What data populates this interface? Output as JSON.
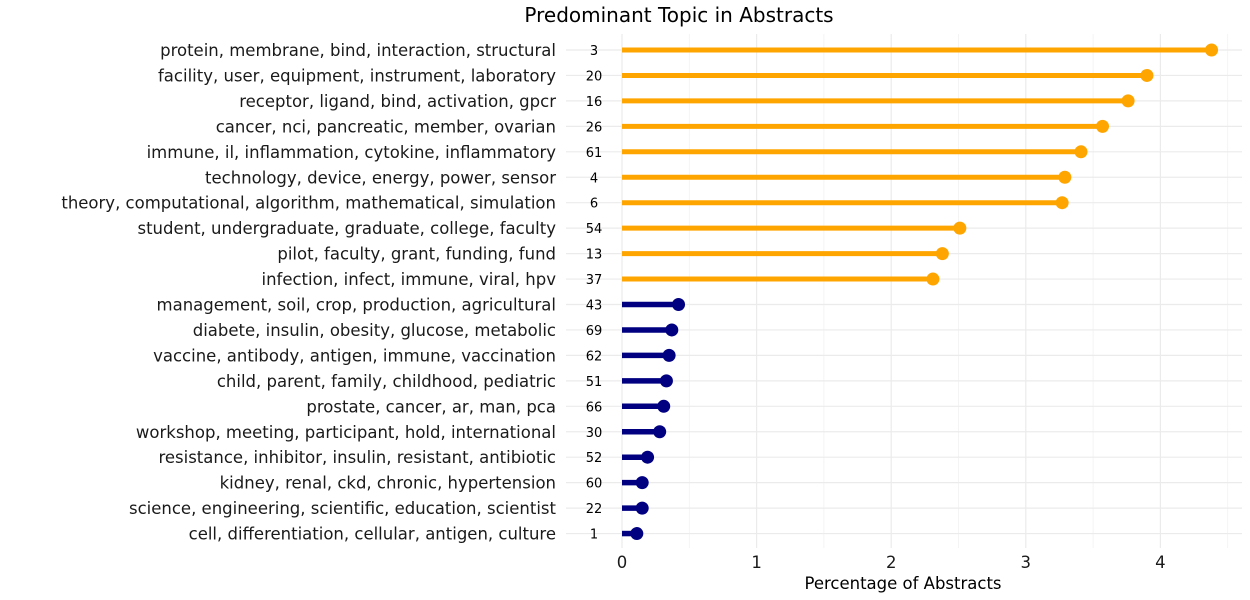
{
  "chart_data": {
    "type": "lollipop",
    "title": "Predominant Topic in Abstracts",
    "xlabel": "Percentage of Abstracts",
    "ylabel": "",
    "xlim": [
      0,
      4.5
    ],
    "xticks": [
      0,
      1,
      2,
      3,
      4
    ],
    "grid": true,
    "highlight_color": "#FFA500",
    "base_color": "#000080",
    "categories": [
      {
        "label": "protein, membrane, bind, interaction, structural",
        "topic": "3",
        "value": 4.38,
        "highlight": true
      },
      {
        "label": "facility, user, equipment, instrument, laboratory",
        "topic": "20",
        "value": 3.9,
        "highlight": true
      },
      {
        "label": "receptor, ligand, bind, activation, gpcr",
        "topic": "16",
        "value": 3.76,
        "highlight": true
      },
      {
        "label": "cancer, nci, pancreatic, member, ovarian",
        "topic": "26",
        "value": 3.57,
        "highlight": true
      },
      {
        "label": "immune, il, inflammation, cytokine, inflammatory",
        "topic": "61",
        "value": 3.41,
        "highlight": true
      },
      {
        "label": "technology, device, energy, power, sensor",
        "topic": "4",
        "value": 3.29,
        "highlight": true
      },
      {
        "label": "theory, computational, algorithm, mathematical, simulation",
        "topic": "6",
        "value": 3.27,
        "highlight": true
      },
      {
        "label": "student, undergraduate, graduate, college, faculty",
        "topic": "54",
        "value": 2.51,
        "highlight": true
      },
      {
        "label": "pilot, faculty, grant, funding, fund",
        "topic": "13",
        "value": 2.38,
        "highlight": true
      },
      {
        "label": "infection, infect, immune, viral, hpv",
        "topic": "37",
        "value": 2.31,
        "highlight": true
      },
      {
        "label": "management, soil, crop, production, agricultural",
        "topic": "43",
        "value": 0.42,
        "highlight": false
      },
      {
        "label": "diabete, insulin, obesity, glucose, metabolic",
        "topic": "69",
        "value": 0.37,
        "highlight": false
      },
      {
        "label": "vaccine, antibody, antigen, immune, vaccination",
        "topic": "62",
        "value": 0.35,
        "highlight": false
      },
      {
        "label": "child, parent, family, childhood, pediatric",
        "topic": "51",
        "value": 0.33,
        "highlight": false
      },
      {
        "label": "prostate, cancer, ar, man, pca",
        "topic": "66",
        "value": 0.31,
        "highlight": false
      },
      {
        "label": "workshop, meeting, participant, hold, international",
        "topic": "30",
        "value": 0.28,
        "highlight": false
      },
      {
        "label": "resistance, inhibitor, insulin, resistant, antibiotic",
        "topic": "52",
        "value": 0.19,
        "highlight": false
      },
      {
        "label": "kidney, renal, ckd, chronic, hypertension",
        "topic": "60",
        "value": 0.15,
        "highlight": false
      },
      {
        "label": "science, engineering, scientific, education, scientist",
        "topic": "22",
        "value": 0.15,
        "highlight": false
      },
      {
        "label": "cell, differentiation, cellular, antigen, culture",
        "topic": "1",
        "value": 0.11,
        "highlight": false
      }
    ]
  }
}
